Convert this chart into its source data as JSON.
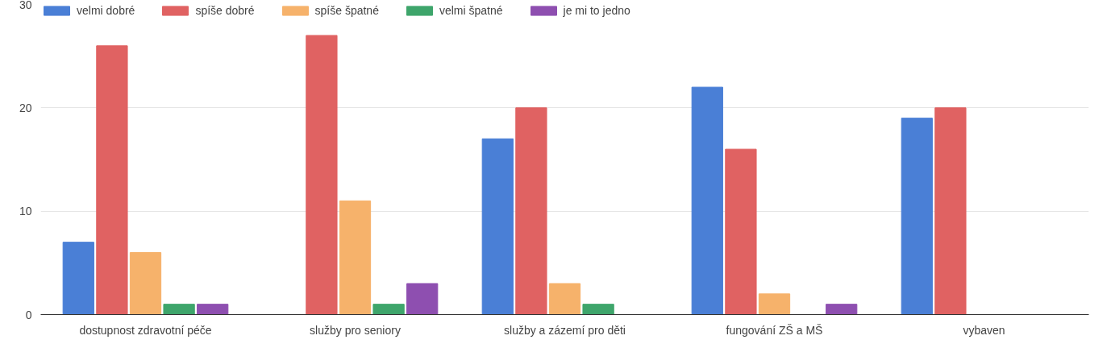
{
  "chart_data": {
    "type": "bar",
    "categories": [
      "dostupnost zdravotní péče",
      "služby pro seniory",
      "služby a zázemí pro děti",
      "fungování ZŠ a MŠ",
      "vybaven"
    ],
    "series": [
      {
        "name": "velmi dobré",
        "color": "#4a7fd6",
        "values": [
          7,
          0,
          17,
          22,
          19
        ]
      },
      {
        "name": "spíše dobré",
        "color": "#e06262",
        "values": [
          26,
          27,
          20,
          16,
          20
        ]
      },
      {
        "name": "spíše špatné",
        "color": "#f6b26b",
        "values": [
          6,
          11,
          3,
          2,
          null
        ]
      },
      {
        "name": "velmi špatné",
        "color": "#3ea56b",
        "values": [
          1,
          1,
          1,
          0,
          null
        ]
      },
      {
        "name": "je mi to jedno",
        "color": "#8e4fb0",
        "values": [
          1,
          3,
          0,
          1,
          null
        ]
      }
    ],
    "ylim": [
      0,
      30
    ],
    "yticks": [
      0,
      10,
      20,
      30
    ],
    "grid": "y",
    "legend": "top"
  }
}
